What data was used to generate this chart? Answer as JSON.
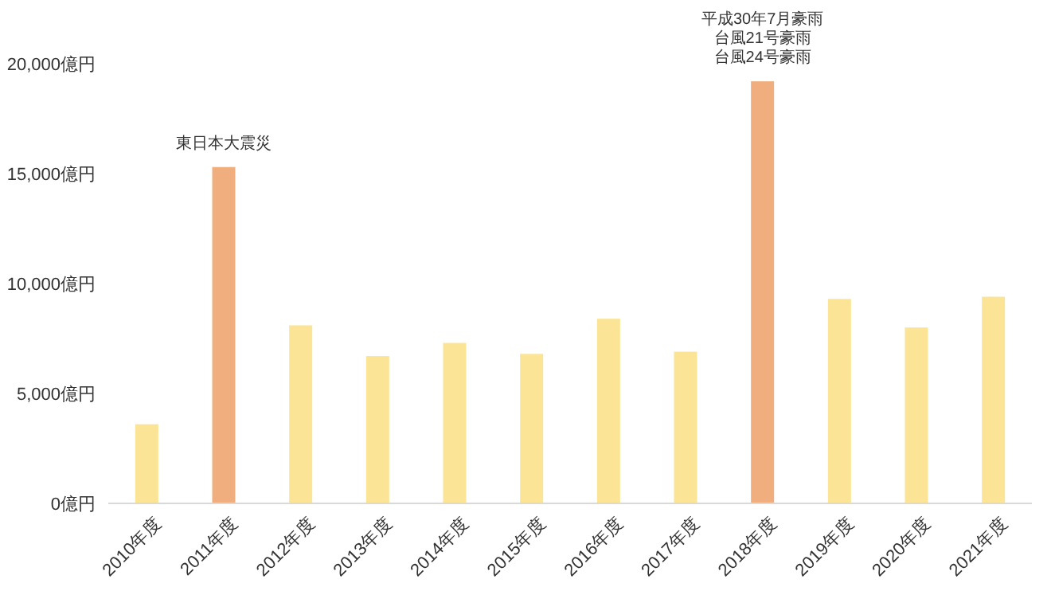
{
  "chart_data": {
    "type": "bar",
    "categories": [
      "2010年度",
      "2011年度",
      "2012年度",
      "2013年度",
      "2014年度",
      "2015年度",
      "2016年度",
      "2017年度",
      "2018年度",
      "2019年度",
      "2020年度",
      "2021年度"
    ],
    "values": [
      3600,
      15300,
      8100,
      6700,
      7300,
      6800,
      8400,
      6900,
      19200,
      9300,
      8000,
      9400
    ],
    "colors": [
      "#fce496",
      "#f0ae7e",
      "#fce496",
      "#fce496",
      "#fce496",
      "#fce496",
      "#fce496",
      "#fce496",
      "#f0ae7e",
      "#fce496",
      "#fce496",
      "#fce496"
    ],
    "ylim": [
      0,
      20000
    ],
    "yticks": [
      {
        "value": 0,
        "label": "0億円"
      },
      {
        "value": 5000,
        "label": "5,000億円"
      },
      {
        "value": 10000,
        "label": "10,000億円"
      },
      {
        "value": 15000,
        "label": "15,000億円"
      },
      {
        "value": 20000,
        "label": "20,000億円"
      }
    ],
    "grid": false,
    "annotations": [
      {
        "text": "東日本大震災",
        "x": "2011年度",
        "y": 15300
      },
      "平成30年7月豪雨",
      "台風21号豪雨",
      {
        "text": "台風24号豪雨",
        "x": "2018年度",
        "y": 19200
      }
    ]
  }
}
